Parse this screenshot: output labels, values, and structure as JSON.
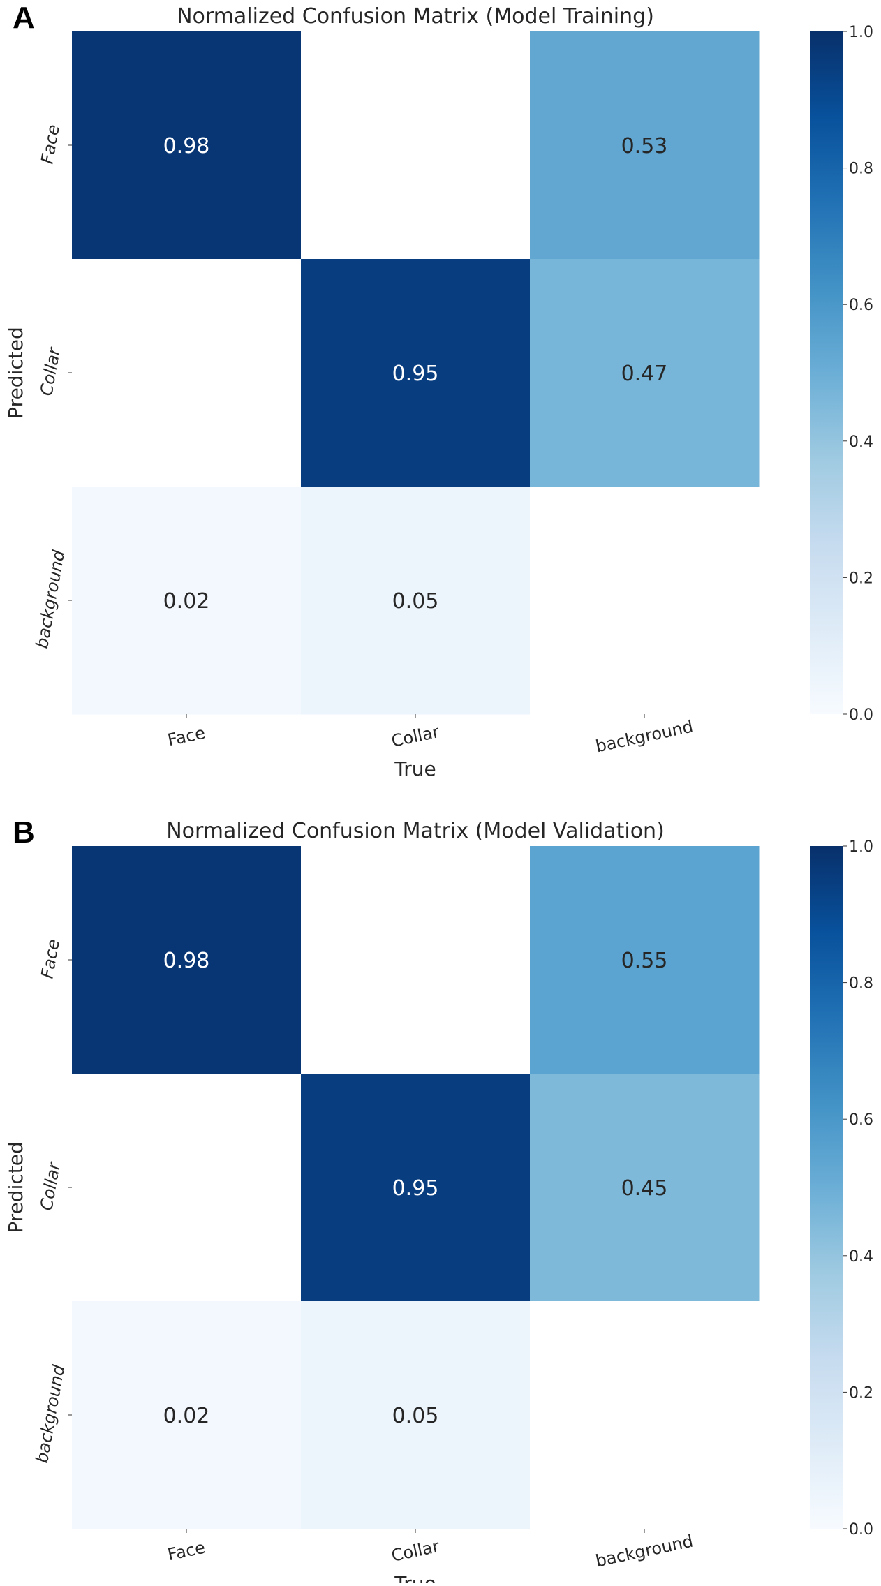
{
  "chart_data": [
    {
      "type": "heatmap",
      "panel_label": "A",
      "title": "Normalized Confusion Matrix (Model Training)",
      "xlabel": "True",
      "ylabel": "Predicted",
      "x_categories": [
        "Face",
        "Collar",
        "background"
      ],
      "y_categories": [
        "Face",
        "Collar",
        "background"
      ],
      "values": [
        [
          0.98,
          null,
          0.53
        ],
        [
          null,
          0.95,
          0.47
        ],
        [
          0.02,
          0.05,
          null
        ]
      ],
      "annotations": [
        [
          "0.98",
          "",
          "0.53"
        ],
        [
          "",
          "0.95",
          "0.47"
        ],
        [
          "0.02",
          "0.05",
          ""
        ]
      ],
      "colormap": "Blues",
      "colorbar": {
        "range": [
          0.0,
          1.0
        ],
        "ticks": [
          "0.0",
          "0.2",
          "0.4",
          "0.6",
          "0.8",
          "1.0"
        ]
      }
    },
    {
      "type": "heatmap",
      "panel_label": "B",
      "title": "Normalized Confusion Matrix (Model Validation)",
      "xlabel": "True",
      "ylabel": "Predicted",
      "x_categories": [
        "Face",
        "Collar",
        "background"
      ],
      "y_categories": [
        "Face",
        "Collar",
        "background"
      ],
      "values": [
        [
          0.98,
          null,
          0.55
        ],
        [
          null,
          0.95,
          0.45
        ],
        [
          0.02,
          0.05,
          null
        ]
      ],
      "annotations": [
        [
          "0.98",
          "",
          "0.55"
        ],
        [
          "",
          "0.95",
          "0.45"
        ],
        [
          "0.02",
          "0.05",
          ""
        ]
      ],
      "colormap": "Blues",
      "colorbar": {
        "range": [
          0.0,
          1.0
        ],
        "ticks": [
          "0.0",
          "0.2",
          "0.4",
          "0.6",
          "0.8",
          "1.0"
        ]
      }
    }
  ]
}
